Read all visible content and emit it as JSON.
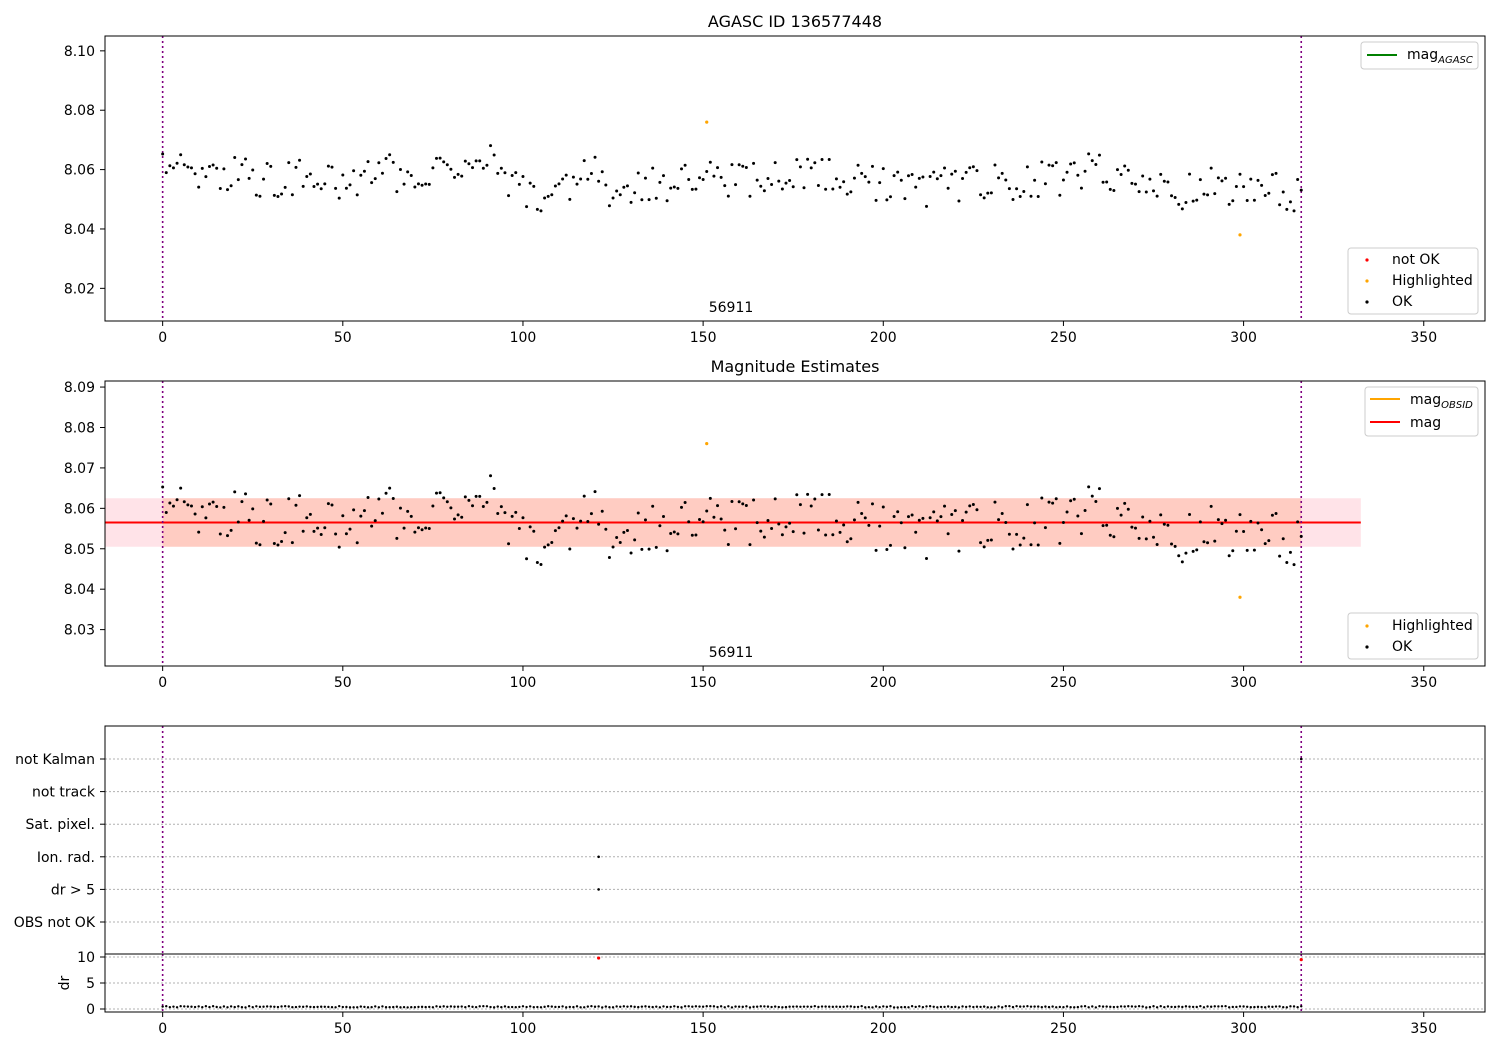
{
  "figure": {
    "x_ticks": [
      0,
      50,
      100,
      150,
      200,
      250,
      300,
      350
    ],
    "xlim": [
      -16,
      367
    ],
    "vlines": [
      0,
      316
    ],
    "vline_color": "#800080",
    "n_points": 316
  },
  "chart_data": [
    {
      "type": "scatter",
      "title": "AGASC ID 136577448",
      "annotation": "56911",
      "ylim": [
        8.009,
        8.105
      ],
      "y_ticks": [
        8.02,
        8.04,
        8.06,
        8.08,
        8.1
      ],
      "y_tick_labels": [
        "8.02",
        "8.04",
        "8.06",
        "8.08",
        "8.10"
      ],
      "line_legend": [
        {
          "label": "mag",
          "sub": "AGASC",
          "color": "#008000"
        }
      ],
      "point_legend": [
        {
          "label": "not OK",
          "color": "#ff0000"
        },
        {
          "label": "Highlighted",
          "color": "#ffa500"
        },
        {
          "label": "OK",
          "color": "#000000"
        }
      ],
      "highlighted": [
        {
          "x": 151,
          "y": 8.076
        },
        {
          "x": 299,
          "y": 8.038
        }
      ],
      "series": [
        {
          "name": "OK",
          "color": "#000000",
          "y_anchors": [
            [
              0,
              8.06
            ],
            [
              10,
              8.06
            ],
            [
              20,
              8.058
            ],
            [
              30,
              8.056
            ],
            [
              40,
              8.057
            ],
            [
              50,
              8.056
            ],
            [
              60,
              8.06
            ],
            [
              70,
              8.058
            ],
            [
              80,
              8.063
            ],
            [
              90,
              8.063
            ],
            [
              100,
              8.054
            ],
            [
              105,
              8.05
            ],
            [
              110,
              8.055
            ],
            [
              120,
              8.058
            ],
            [
              125,
              8.05
            ],
            [
              130,
              8.055
            ],
            [
              140,
              8.056
            ],
            [
              150,
              8.058
            ],
            [
              160,
              8.057
            ],
            [
              170,
              8.058
            ],
            [
              180,
              8.058
            ],
            [
              190,
              8.056
            ],
            [
              200,
              8.056
            ],
            [
              210,
              8.052
            ],
            [
              220,
              8.055
            ],
            [
              230,
              8.056
            ],
            [
              240,
              8.055
            ],
            [
              250,
              8.058
            ],
            [
              260,
              8.06
            ],
            [
              270,
              8.054
            ],
            [
              280,
              8.052
            ],
            [
              290,
              8.054
            ],
            [
              300,
              8.055
            ],
            [
              316,
              8.052
            ]
          ],
          "noise": 0.0065
        }
      ]
    },
    {
      "type": "scatter",
      "title": "Magnitude Estimates",
      "annotation": "56911",
      "ylim": [
        8.021,
        8.0915
      ],
      "y_ticks": [
        8.03,
        8.04,
        8.05,
        8.06,
        8.07,
        8.08,
        8.09
      ],
      "y_tick_labels": [
        "8.03",
        "8.04",
        "8.05",
        "8.06",
        "8.07",
        "8.08",
        "8.09"
      ],
      "mag": 8.0565,
      "mag_band": [
        8.0505,
        8.0625
      ],
      "mag_obsid_band": [
        8.0505,
        8.0625
      ],
      "mag_color": "#ff0000",
      "mag_obsid_color": "#ffa500",
      "band_color": "#ffc0cb",
      "obsid_band_color": "#ffa07a",
      "line_legend": [
        {
          "label": "mag",
          "sub": "OBSID",
          "color": "#ffa500"
        },
        {
          "label": "mag",
          "sub": "",
          "color": "#ff0000"
        }
      ],
      "point_legend": [
        {
          "label": "Highlighted",
          "color": "#ffa500"
        },
        {
          "label": "OK",
          "color": "#000000"
        }
      ],
      "highlighted": [
        {
          "x": 151,
          "y": 8.076
        },
        {
          "x": 299,
          "y": 8.038
        }
      ]
    },
    {
      "type": "scatter",
      "flag_labels": [
        "not Kalman",
        "not track",
        "Sat. pixel.",
        "Ion. rad.",
        "dr > 5",
        "OBS not OK"
      ],
      "flag_points": [
        {
          "flag": "Ion. rad.",
          "x": 121
        },
        {
          "flag": "dr > 5",
          "x": 121
        },
        {
          "flag": "not Kalman",
          "x": 316
        }
      ]
    },
    {
      "type": "scatter",
      "ylabel": "dr",
      "ylim": [
        -0.3,
        10.3
      ],
      "y_ticks": [
        0,
        5,
        10
      ],
      "y_tick_labels": [
        "0",
        "5",
        "10"
      ],
      "outliers": [
        {
          "x": 121,
          "y": 9.8
        },
        {
          "x": 316,
          "y": 9.5
        }
      ],
      "baseline": 0.3
    }
  ]
}
